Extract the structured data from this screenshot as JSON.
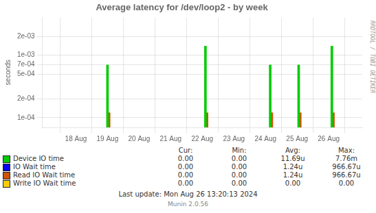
{
  "chart_data": {
    "type": "bar",
    "title": "Average latency for /dev/loop2 - by week",
    "ylabel": "seconds",
    "log": "y",
    "grid": true,
    "xlim": [
      -0.5,
      8.5
    ],
    "xticks": [
      {
        "value": 0,
        "label": "18 Aug"
      },
      {
        "value": 1,
        "label": "19 Aug"
      },
      {
        "value": 2,
        "label": "20 Aug"
      },
      {
        "value": 3,
        "label": "21 Aug"
      },
      {
        "value": 4,
        "label": "22 Aug"
      },
      {
        "value": 5,
        "label": "23 Aug"
      },
      {
        "value": 6,
        "label": "24 Aug"
      },
      {
        "value": 7,
        "label": "25 Aug"
      },
      {
        "value": 8,
        "label": "26 Aug"
      }
    ],
    "ylim": [
      7e-05,
      0.004
    ],
    "yticks": [
      {
        "value": 0.0001,
        "label": "1e-04"
      },
      {
        "value": 0.0002,
        "label": "2e-04"
      },
      {
        "value": 0.0005,
        "label": "5e-04"
      },
      {
        "value": 0.0007,
        "label": "7e-04"
      },
      {
        "value": 0.001,
        "label": "1e-03"
      },
      {
        "value": 0.002,
        "label": "2e-03"
      }
    ],
    "stats_headers": [
      "Cur:",
      "Min:",
      "Avg:",
      "Max:"
    ],
    "series": [
      {
        "name": "Device IO time",
        "color": "#00cc00",
        "x": [
          1.0,
          4.1,
          6.15,
          7.05,
          8.1
        ],
        "values": [
          0.0007,
          0.0014,
          0.0007,
          0.0007,
          0.0014
        ],
        "stats": [
          "0.00",
          "0.00",
          "11.69u",
          "7.76m"
        ]
      },
      {
        "name": "IO Wait time",
        "color": "#0000ff",
        "x": [],
        "values": [],
        "stats": [
          "0.00",
          "0.00",
          "1.24u",
          "966.67u"
        ]
      },
      {
        "name": "Read IO Wait time",
        "color": "#cc5500",
        "x": [
          1.05,
          4.15,
          6.2,
          7.1,
          8.15
        ],
        "values": [
          0.00012,
          0.00012,
          0.00012,
          0.00012,
          0.00012
        ],
        "stats": [
          "0.00",
          "0.00",
          "1.24u",
          "966.67u"
        ]
      },
      {
        "name": "Write IO Wait time",
        "color": "#ffcc00",
        "x": [],
        "values": [],
        "stats": [
          "0.00",
          "0.00",
          "0.00",
          "0.00"
        ]
      }
    ],
    "annotations": [
      "Last update: Mon Aug 26 13:20:13 2024",
      "Munin 2.0.56",
      "RRDTOOL / TOBI OETIKER"
    ]
  }
}
